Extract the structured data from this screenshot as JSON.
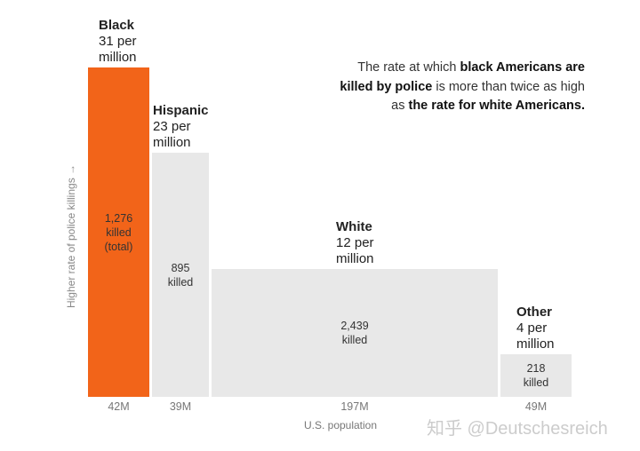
{
  "chart_data": {
    "type": "bar",
    "variant": "marimekko",
    "categories": [
      "Black",
      "Hispanic",
      "White",
      "Other"
    ],
    "series": [
      {
        "name": "rate per million",
        "values": [
          31,
          23,
          12,
          4
        ]
      },
      {
        "name": "killed",
        "values": [
          1276,
          895,
          2439,
          218
        ]
      },
      {
        "name": "U.S. population (M)",
        "values": [
          42,
          39,
          197,
          49
        ]
      }
    ],
    "bars": [
      {
        "name": "Black",
        "rate_label": "31 per",
        "unit": "million",
        "killed_label": "1,276",
        "killed_text": "killed",
        "extra": "(total)",
        "pop_label": "42M",
        "color": "#f26419"
      },
      {
        "name": "Hispanic",
        "rate_label": "23 per",
        "unit": "million",
        "killed_label": "895",
        "killed_text": "killed",
        "pop_label": "39M",
        "color": "#e8e8e8"
      },
      {
        "name": "White",
        "rate_label": "12 per",
        "unit": "million",
        "killed_label": "2,439",
        "killed_text": "killed",
        "pop_label": "197M",
        "color": "#e8e8e8"
      },
      {
        "name": "Other",
        "rate_label": "4 per",
        "unit": "million",
        "killed_label": "218",
        "killed_text": "killed",
        "pop_label": "49M",
        "color": "#e8e8e8"
      }
    ],
    "xlabel": "U.S. population",
    "ylabel": "Higher rate of police killings →",
    "annotation": {
      "p1": "The rate at which ",
      "b1": "black Americans are",
      "b2": "killed by police",
      " p2": "",
      "p2": " is more than twice as high",
      "p3": "as ",
      "b3": "the rate for white Americans."
    }
  },
  "watermark": "知乎 @Deutschesreich"
}
